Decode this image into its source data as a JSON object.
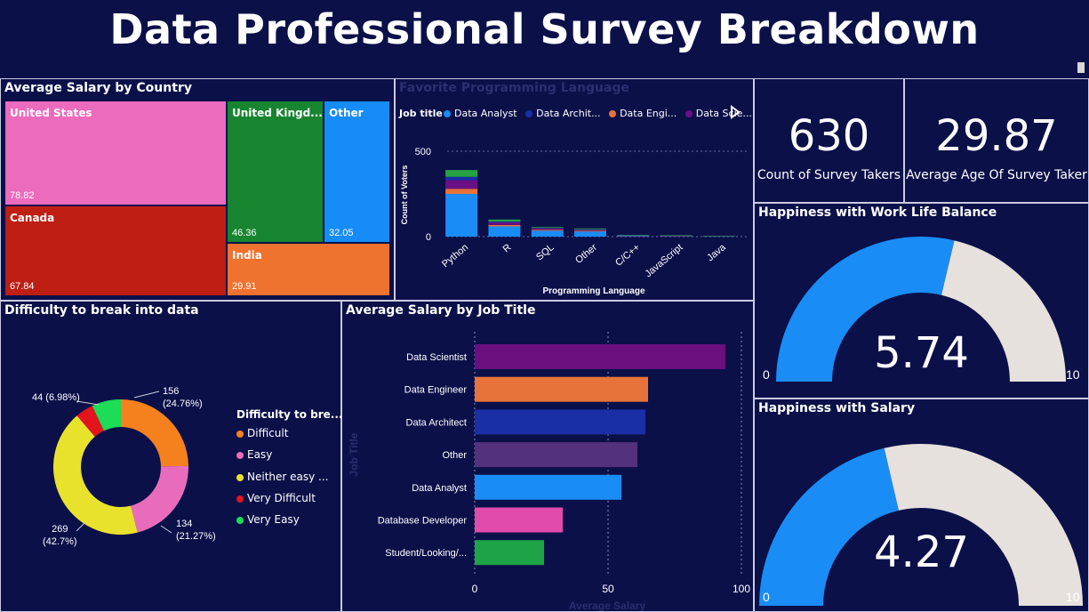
{
  "header": {
    "title": "Data Professional Survey Breakdown"
  },
  "treemap": {
    "title": "Average Salary by Country",
    "tiles": [
      {
        "name": "United States",
        "value": "78.82",
        "color": "#ec6bbd"
      },
      {
        "name": "Canada",
        "value": "67.84",
        "color": "#be1e14"
      },
      {
        "name": "United Kingd...",
        "value": "46.36",
        "color": "#178530"
      },
      {
        "name": "Other",
        "value": "32.05",
        "color": "#158cf7"
      },
      {
        "name": "India",
        "value": "29.91",
        "color": "#f0722f"
      }
    ]
  },
  "languages": {
    "title": "Favorite Programming Language",
    "legend_title": "Job title",
    "legend": [
      {
        "name": "Data Analyst",
        "color": "#1a8cf5"
      },
      {
        "name": "Data Archit...",
        "color": "#1a2fa6"
      },
      {
        "name": "Data Engi...",
        "color": "#e8733a"
      },
      {
        "name": "Data Scie...",
        "color": "#6b0f84"
      }
    ],
    "next_icon": "chevron-right-icon"
  },
  "kpis": {
    "count_value": "630",
    "count_label": "Count of Survey Takers",
    "age_value": "29.87",
    "age_label": "Average Age Of Survey Taker"
  },
  "gauges": [
    {
      "title": "Happiness with Work Life Balance",
      "value_text": "5.74",
      "value": 5.74,
      "min": "0",
      "max": "10",
      "fill": "#1a8cf5",
      "track": "#e6e1dc"
    },
    {
      "title": "Happiness with Salary",
      "value_text": "4.27",
      "value": 4.27,
      "min": "0",
      "max": "10",
      "fill": "#1a8cf5",
      "track": "#e6e1dc"
    }
  ],
  "difficulty": {
    "title": "Difficulty to break into data",
    "legend_title": "Difficulty to bre...",
    "legend": [
      {
        "name": "Difficult",
        "color": "#f5811e"
      },
      {
        "name": "Easy",
        "color": "#e96cbc"
      },
      {
        "name": "Neither easy ...",
        "color": "#e8e22c"
      },
      {
        "name": "Very Difficult",
        "color": "#e3141c"
      },
      {
        "name": "Very Easy",
        "color": "#1ddc55"
      }
    ],
    "labels": {
      "difficult_count": "156",
      "difficult_pct": "(24.76%)",
      "easy_count": "134",
      "easy_pct": "(21.27%)",
      "neither_count": "269",
      "neither_pct": "(42.7%)",
      "veryeasy_label": "44 (6.98%)"
    }
  },
  "salary_by_job": {
    "title": "Average Salary by Job Title"
  },
  "chart_data": [
    {
      "type": "bar",
      "title": "Favorite Programming Language",
      "xlabel": "Programming Language",
      "ylabel": "Count of Voters",
      "categories": [
        "Python",
        "R",
        "SQL",
        "Other",
        "C/C++",
        "JavaScript",
        "Java"
      ],
      "yticks": [
        "0",
        "500"
      ],
      "ylim": [
        0,
        500
      ],
      "stacked": true,
      "series": [
        {
          "name": "Data Analyst",
          "color": "#1a8cf5",
          "values": [
            250,
            60,
            35,
            30,
            5,
            3,
            3
          ]
        },
        {
          "name": "Data Engi...",
          "color": "#e8733a",
          "values": [
            30,
            8,
            5,
            5,
            1,
            1,
            0
          ]
        },
        {
          "name": "Data Scie...",
          "color": "#6b0f84",
          "values": [
            50,
            15,
            8,
            5,
            1,
            1,
            1
          ]
        },
        {
          "name": "Data Archit...",
          "color": "#1a2fa6",
          "values": [
            20,
            5,
            3,
            3,
            1,
            1,
            0
          ]
        },
        {
          "color": "#28a045",
          "values": [
            40,
            12,
            5,
            5,
            2,
            2,
            1
          ]
        }
      ]
    },
    {
      "type": "bar",
      "orientation": "horizontal",
      "title": "Average Salary by Job Title",
      "xlabel": "Average Salary",
      "ylabel": "Job Title",
      "categories": [
        "Data Scientist",
        "Data Engineer",
        "Data Architect",
        "Other",
        "Data Analyst",
        "Database Developer",
        "Student/Looking/..."
      ],
      "values": [
        94,
        65,
        64,
        61,
        55,
        33,
        26
      ],
      "colors": [
        "#6b0f7e",
        "#e8733a",
        "#1a2fa6",
        "#53317c",
        "#1a8cf5",
        "#e24aad",
        "#1ea346"
      ],
      "xticks": [
        "0",
        "50",
        "100"
      ],
      "xlim": [
        0,
        100
      ]
    },
    {
      "type": "pie",
      "donut": true,
      "title": "Difficulty to break into data",
      "categories": [
        "Difficult",
        "Easy",
        "Neither easy ...",
        "Very Difficult",
        "Very Easy"
      ],
      "values": [
        156,
        134,
        269,
        27,
        44
      ],
      "percent": [
        24.76,
        21.27,
        42.7,
        4.29,
        6.98
      ],
      "colors": [
        "#f5811e",
        "#e96cbc",
        "#e8e22c",
        "#e3141c",
        "#1ddc55"
      ]
    }
  ]
}
